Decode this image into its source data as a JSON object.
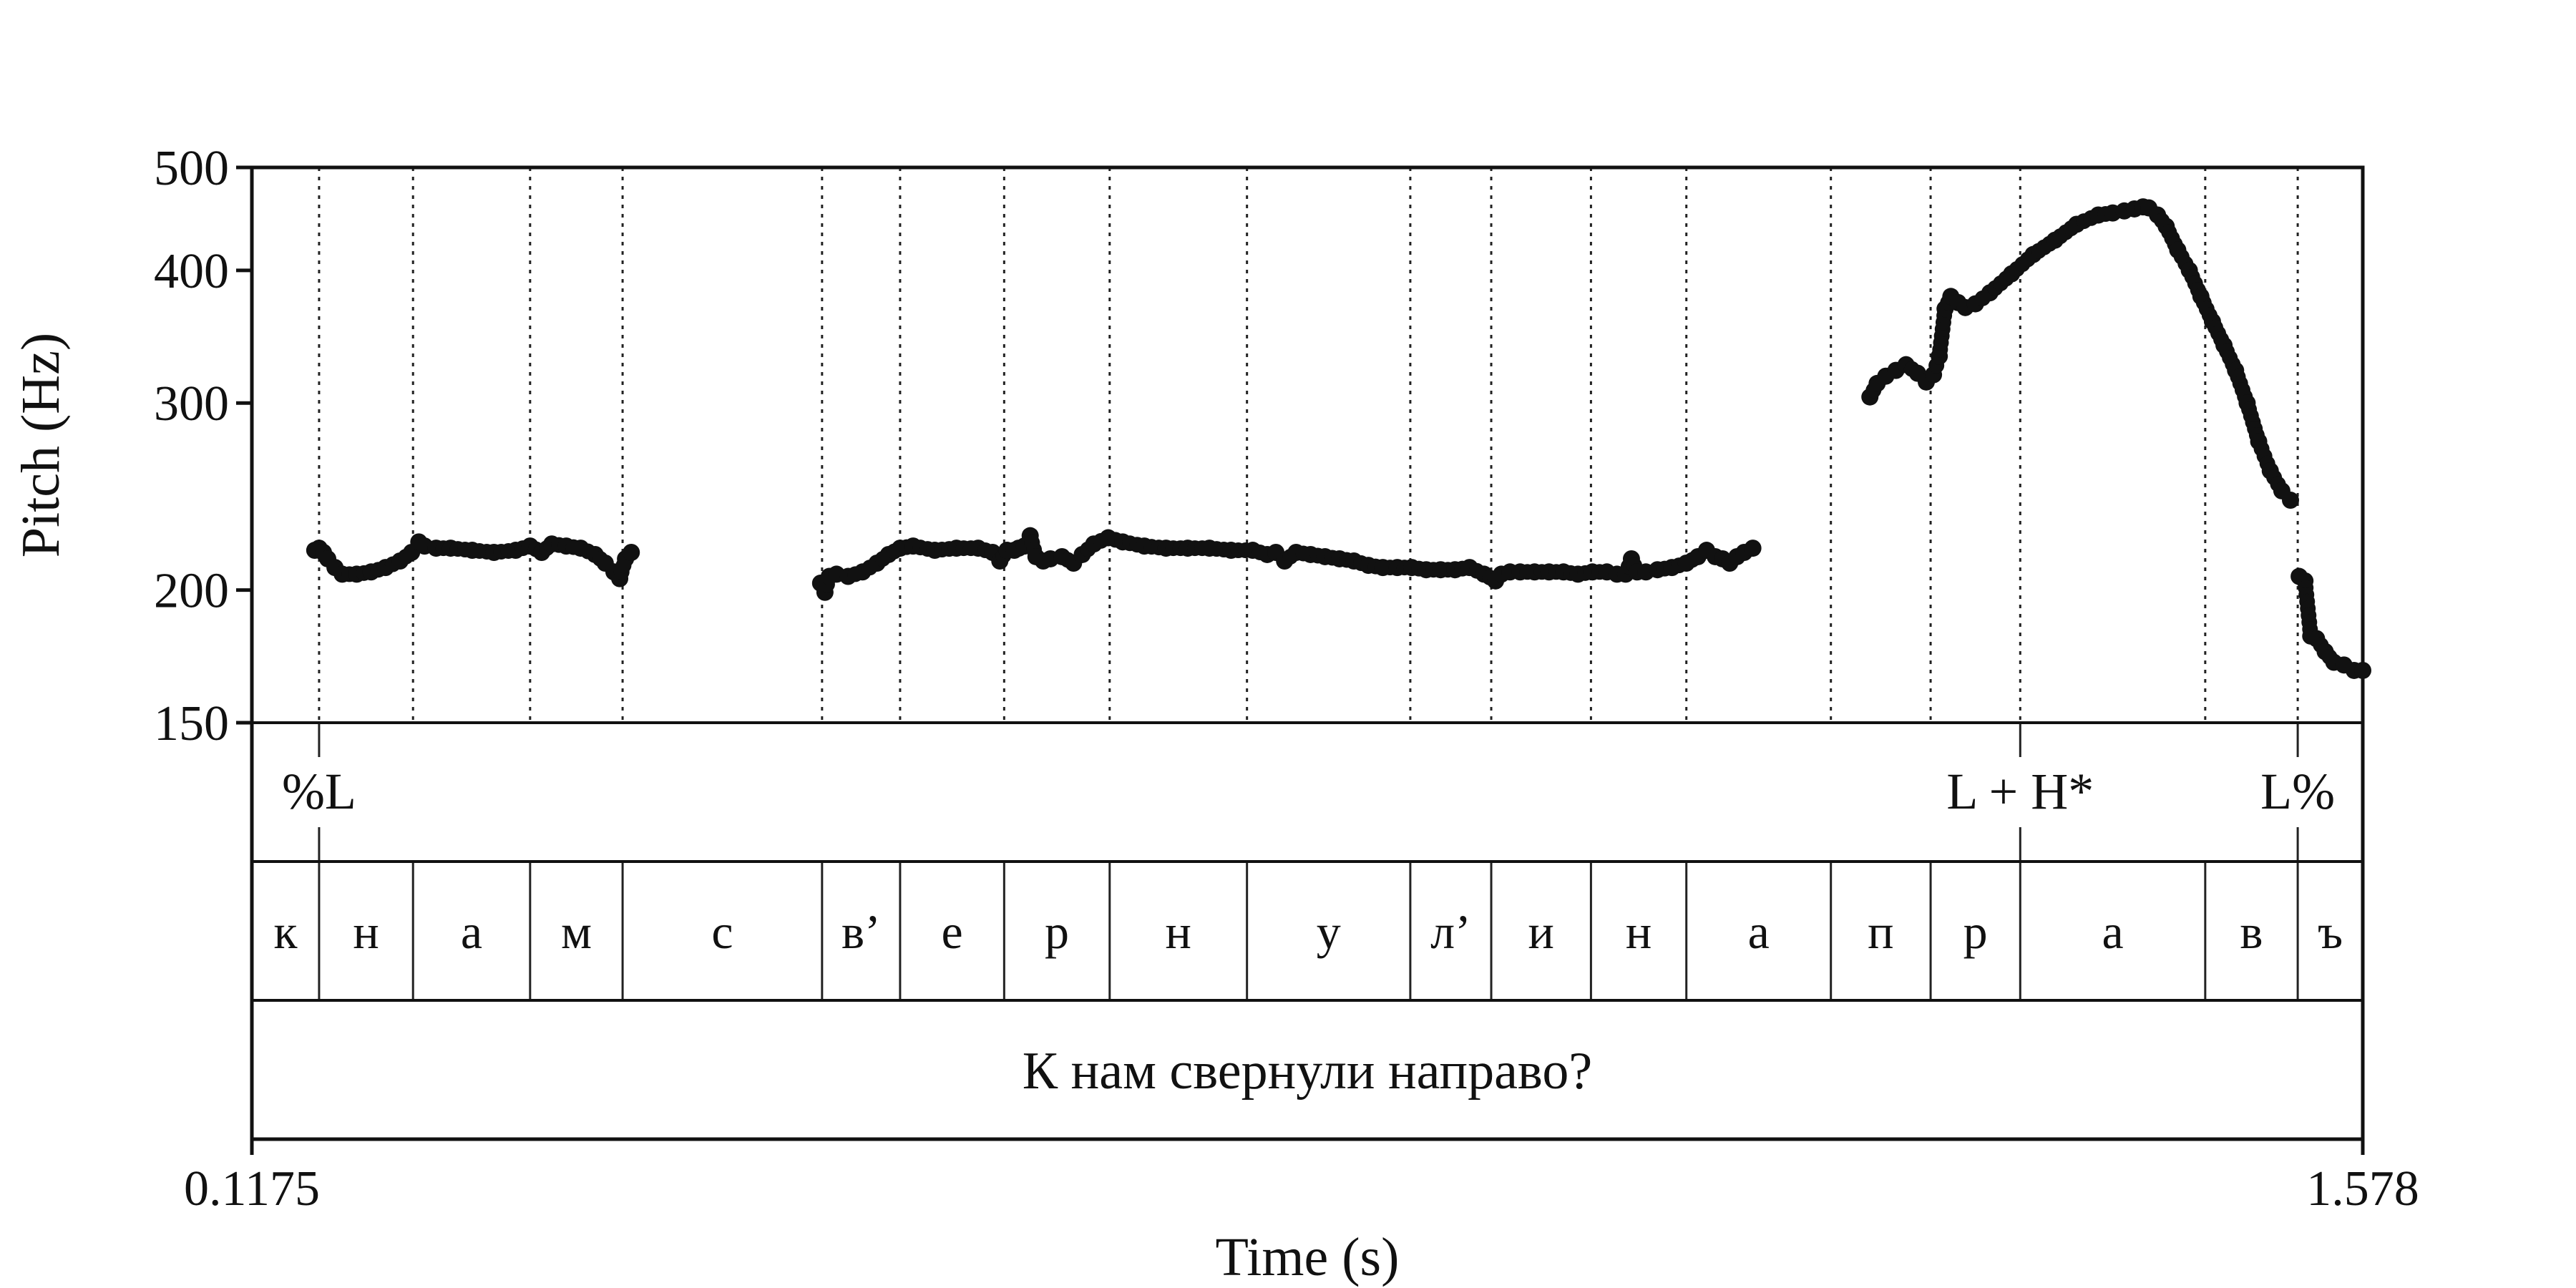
{
  "chart_data": {
    "type": "scatter",
    "xlabel": "Time (s)",
    "ylabel": "Pitch (Hz)",
    "xlim": [
      0.1175,
      1.578
    ],
    "ylim": [
      150,
      500
    ],
    "y_scale": "log",
    "x_tick_labels": [
      "0.1175",
      "1.578"
    ],
    "y_ticks": [
      150,
      200,
      300,
      400,
      500
    ],
    "grid": false,
    "tone_tier": [
      {
        "label": "%L",
        "t": 0.164
      },
      {
        "label": "L + H*",
        "t": 1.341
      },
      {
        "label": "L%",
        "t": 1.533
      }
    ],
    "segments": [
      {
        "label": "к",
        "start": 0.1175,
        "end": 0.164
      },
      {
        "label": "н",
        "start": 0.164,
        "end": 0.229
      },
      {
        "label": "а",
        "start": 0.229,
        "end": 0.31
      },
      {
        "label": "м",
        "start": 0.31,
        "end": 0.374
      },
      {
        "label": "с",
        "start": 0.374,
        "end": 0.512
      },
      {
        "label": "в’",
        "start": 0.512,
        "end": 0.566
      },
      {
        "label": "е",
        "start": 0.566,
        "end": 0.638
      },
      {
        "label": "р",
        "start": 0.638,
        "end": 0.711
      },
      {
        "label": "н",
        "start": 0.711,
        "end": 0.806
      },
      {
        "label": "у",
        "start": 0.806,
        "end": 0.919
      },
      {
        "label": "л’",
        "start": 0.919,
        "end": 0.975
      },
      {
        "label": "и",
        "start": 0.975,
        "end": 1.044
      },
      {
        "label": "н",
        "start": 1.044,
        "end": 1.11
      },
      {
        "label": "а",
        "start": 1.11,
        "end": 1.21
      },
      {
        "label": "п",
        "start": 1.21,
        "end": 1.279
      },
      {
        "label": "р",
        "start": 1.279,
        "end": 1.341
      },
      {
        "label": "а",
        "start": 1.341,
        "end": 1.469
      },
      {
        "label": "в",
        "start": 1.469,
        "end": 1.533
      },
      {
        "label": "ъ",
        "start": 1.533,
        "end": 1.578
      }
    ],
    "sentence": "К нам свернули направо?",
    "pitch_track": [
      {
        "x": [
          0.161,
          0.164,
          0.167,
          0.17,
          0.175,
          0.18,
          0.19,
          0.2,
          0.21,
          0.22,
          0.228,
          0.233,
          0.237,
          0.245,
          0.255,
          0.27,
          0.285,
          0.3,
          0.31,
          0.318,
          0.325,
          0.335,
          0.345,
          0.355,
          0.362,
          0.368,
          0.372,
          0.376,
          0.38
        ],
        "y": [
          218,
          219,
          217,
          214,
          210,
          207,
          207,
          208,
          210,
          213,
          217,
          222,
          220,
          219,
          219,
          218,
          217,
          218,
          220,
          217,
          221,
          220,
          219,
          216,
          212,
          208,
          205,
          214,
          217
        ]
      },
      {
        "x": [
          0.511,
          0.514,
          0.517,
          0.522,
          0.53,
          0.54,
          0.55,
          0.558,
          0.566,
          0.575,
          0.59,
          0.605,
          0.62,
          0.63,
          0.635,
          0.64,
          0.645,
          0.648,
          0.652,
          0.656,
          0.66,
          0.665,
          0.67,
          0.678,
          0.686,
          0.692,
          0.7,
          0.71,
          0.72,
          0.735,
          0.75,
          0.765,
          0.78,
          0.795,
          0.81,
          0.82,
          0.826,
          0.832,
          0.84,
          0.85,
          0.86,
          0.87,
          0.88,
          0.89,
          0.9,
          0.91,
          0.92,
          0.93,
          0.94,
          0.95,
          0.96,
          0.97,
          0.978,
          0.982,
          0.988,
          0.995,
          1.005,
          1.015,
          1.025,
          1.035,
          1.045,
          1.055,
          1.062,
          1.068,
          1.072,
          1.076,
          1.082,
          1.09,
          1.1,
          1.11,
          1.118,
          1.124,
          1.13,
          1.135,
          1.14,
          1.145,
          1.15,
          1.156
        ],
        "y": [
          203,
          199,
          206,
          207,
          206,
          208,
          212,
          216,
          219,
          220,
          218,
          219,
          219,
          217,
          213,
          218,
          218,
          219,
          220,
          225,
          215,
          213,
          214,
          215,
          212,
          216,
          221,
          224,
          222,
          220,
          219,
          219,
          219,
          218,
          218,
          216,
          217,
          213,
          217,
          216,
          215,
          214,
          213,
          211,
          210,
          210,
          210,
          209,
          209,
          209,
          210,
          207,
          204,
          207,
          208,
          208,
          208,
          208,
          208,
          207,
          208,
          208,
          207,
          207,
          214,
          208,
          208,
          209,
          210,
          212,
          215,
          218,
          215,
          214,
          212,
          215,
          217,
          219
        ]
      },
      {
        "x": [
          1.237,
          1.242,
          1.248,
          1.255,
          1.262,
          1.27,
          1.276,
          1.281,
          1.285,
          1.289,
          1.293,
          1.298,
          1.303,
          1.31,
          1.32,
          1.335,
          1.35,
          1.365,
          1.38,
          1.395,
          1.405,
          1.413,
          1.42,
          1.426,
          1.43,
          1.436,
          1.442,
          1.45,
          1.458,
          1.466,
          1.474,
          1.482,
          1.49,
          1.498,
          1.506,
          1.514,
          1.522,
          1.528
        ],
        "y": [
          304,
          313,
          318,
          322,
          326,
          320,
          314,
          319,
          332,
          368,
          378,
          373,
          369,
          372,
          381,
          397,
          414,
          427,
          442,
          451,
          453,
          455,
          457,
          459,
          458,
          451,
          440,
          418,
          400,
          378,
          358,
          340,
          322,
          300,
          276,
          259,
          248,
          243
        ]
      },
      {
        "x": [
          1.534,
          1.538,
          1.542,
          1.546,
          1.552,
          1.558,
          1.565,
          1.572,
          1.578
        ],
        "y": [
          206,
          204,
          181,
          180,
          175,
          171,
          170,
          168,
          168
        ]
      }
    ]
  }
}
